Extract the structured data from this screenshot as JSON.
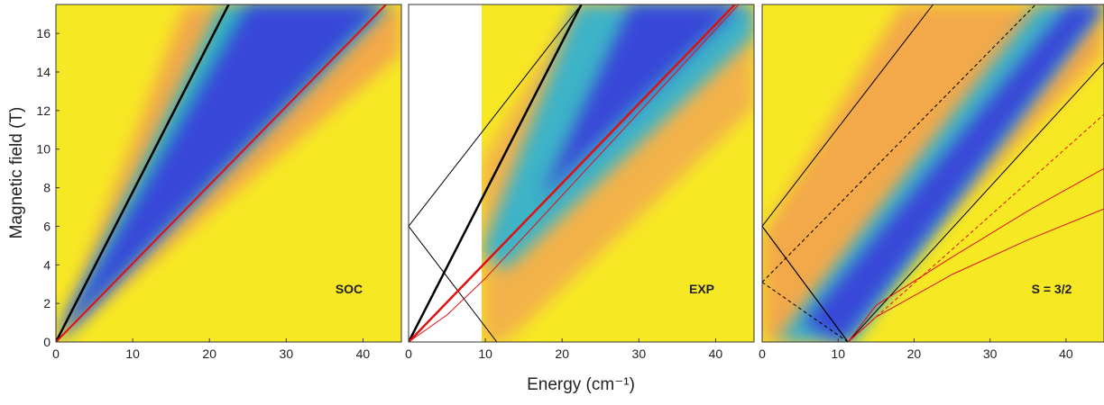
{
  "chart_data": [
    {
      "type": "line",
      "ylabel": "Magnetic field (T)",
      "annotation": "SOC",
      "xlim": [
        0,
        45
      ],
      "ylim": [
        0,
        17.5
      ],
      "xticks": [
        0,
        10,
        20,
        30,
        40
      ],
      "yticks": [
        0,
        2,
        4,
        6,
        8,
        10,
        12,
        14,
        16
      ],
      "series": [
        {
          "color": "#000000",
          "width": 2.5,
          "dash": false,
          "x": [
            0,
            22.5
          ],
          "values": [
            0,
            17.5
          ]
        },
        {
          "color": "#e01010",
          "width": 2,
          "dash": false,
          "x": [
            0,
            43
          ],
          "values": [
            0,
            17.5
          ]
        }
      ]
    },
    {
      "type": "line",
      "xlabel": "Energy (cm⁻¹)",
      "annotation": "EXP",
      "xlim": [
        0,
        45
      ],
      "ylim": [
        0,
        17.5
      ],
      "xticks": [
        0,
        10,
        20,
        30,
        40
      ],
      "series": [
        {
          "color": "#000000",
          "width": 1,
          "dash": false,
          "x": [
            0,
            22.5
          ],
          "values": [
            6,
            17.5
          ]
        },
        {
          "color": "#000000",
          "width": 1,
          "dash": false,
          "x": [
            0,
            11.5
          ],
          "values": [
            6,
            0
          ]
        },
        {
          "color": "#000000",
          "width": 2.5,
          "dash": false,
          "x": [
            0,
            22.5
          ],
          "values": [
            0,
            17.5
          ]
        },
        {
          "color": "#e01010",
          "width": 2.5,
          "dash": false,
          "x": [
            0,
            42.5
          ],
          "values": [
            0,
            17.5
          ]
        },
        {
          "color": "#e01010",
          "width": 1,
          "dash": false,
          "x": [
            0,
            5,
            10,
            20,
            30,
            43
          ],
          "values": [
            0,
            1.4,
            3.3,
            7.6,
            11.9,
            17.5
          ]
        }
      ]
    },
    {
      "type": "line",
      "annotation": "S = 3/2",
      "xlim": [
        0,
        45
      ],
      "ylim": [
        0,
        17.5
      ],
      "xticks": [
        0,
        10,
        20,
        30,
        40
      ],
      "series": [
        {
          "color": "#000000",
          "width": 1,
          "dash": false,
          "x": [
            0,
            22.5
          ],
          "values": [
            6,
            17.5
          ]
        },
        {
          "color": "#000000",
          "width": 1.2,
          "dash": false,
          "x": [
            0,
            11.3
          ],
          "values": [
            6,
            0
          ]
        },
        {
          "color": "#000000",
          "width": 1,
          "dash": false,
          "x": [
            11.3,
            45
          ],
          "values": [
            0,
            14.5
          ]
        },
        {
          "color": "#000000",
          "width": 1,
          "dash": true,
          "x": [
            0,
            36
          ],
          "values": [
            3.1,
            17.5
          ]
        },
        {
          "color": "#000000",
          "width": 1,
          "dash": true,
          "x": [
            0,
            11.3
          ],
          "values": [
            3.1,
            0
          ]
        },
        {
          "color": "#e01010",
          "width": 1,
          "dash": true,
          "x": [
            11.3,
            45
          ],
          "values": [
            0,
            11.8
          ]
        },
        {
          "color": "#e01010",
          "width": 1,
          "dash": false,
          "x": [
            11.3,
            15,
            25,
            35,
            45
          ],
          "values": [
            0,
            1.9,
            4.4,
            6.8,
            9.0
          ]
        },
        {
          "color": "#e01010",
          "width": 1,
          "dash": false,
          "x": [
            11.3,
            15,
            25,
            35,
            45
          ],
          "values": [
            0,
            1.3,
            3.5,
            5.3,
            6.9
          ]
        }
      ]
    }
  ]
}
